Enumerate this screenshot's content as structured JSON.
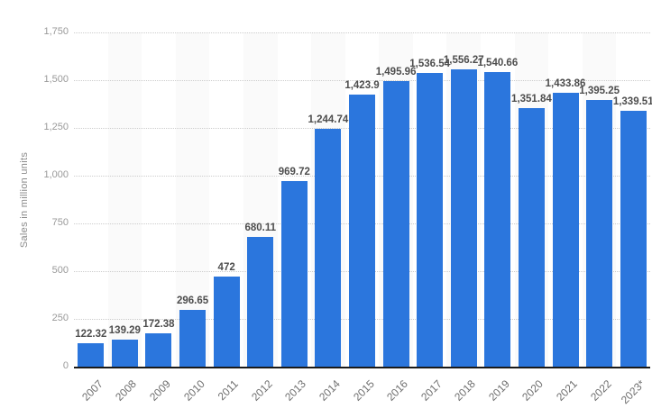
{
  "chart_data": {
    "type": "bar",
    "title": "",
    "xlabel": "",
    "ylabel": "Sales in million units",
    "ylim": [
      0,
      1750
    ],
    "ytick_step": 250,
    "grid": "horizontal-dotted",
    "legend": "none",
    "plot_background": "alternating vertical column stripes",
    "categories": [
      "2007",
      "2008",
      "2009",
      "2010",
      "2011",
      "2012",
      "2013",
      "2014",
      "2015",
      "2016",
      "2017",
      "2018",
      "2019",
      "2020",
      "2021",
      "2022",
      "2023*"
    ],
    "values": [
      122.32,
      139.29,
      172.38,
      296.65,
      472,
      680.11,
      969.72,
      1244.74,
      1423.9,
      1495.96,
      1536.54,
      1556.27,
      1540.66,
      1351.84,
      1433.86,
      1395.25,
      1339.51
    ],
    "value_labels": [
      "122.32",
      "139.29",
      "172.38",
      "296.65",
      "472",
      "680.11",
      "969.72",
      "1,244.74",
      "1,423.9",
      "1,495.96",
      "1,536.54",
      "1,556.27",
      "1,540.66",
      "1,351.84",
      "1,433.86",
      "1,395.25",
      "1,339.51"
    ],
    "yticks": [
      {
        "label": "0",
        "value": 0
      },
      {
        "label": "250",
        "value": 250
      },
      {
        "label": "500",
        "value": 500
      },
      {
        "label": "750",
        "value": 750
      },
      {
        "label": "1,000",
        "value": 1000
      },
      {
        "label": "1,250",
        "value": 1250
      },
      {
        "label": "1,500",
        "value": 1500
      },
      {
        "label": "1,750",
        "value": 1750
      }
    ],
    "colors": {
      "bar": "#2b76dd",
      "axis_line": "#1a1a1a",
      "gridline": "#cccccc",
      "y_tick_label": "#999999",
      "x_tick_label": "#6e6e6e",
      "value_label": "#4d4d4d",
      "y_axis_title": "#8a8a8a",
      "column_stripe": "#fafafa",
      "background": "#ffffff"
    }
  }
}
